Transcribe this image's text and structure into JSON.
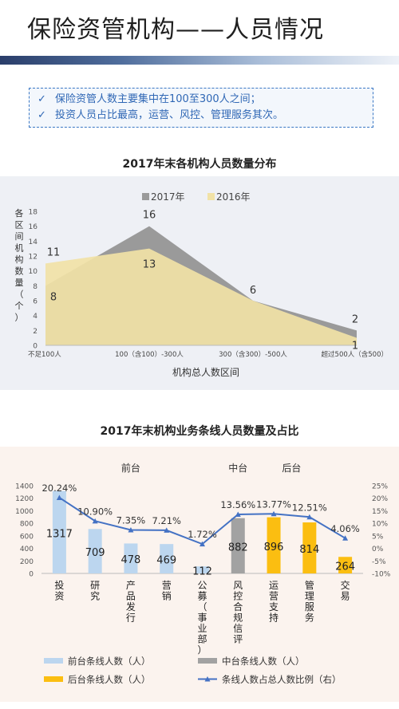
{
  "page": {
    "title": "保险资管机构——人员情况",
    "highlights": [
      "保险资管人数主要集中在100至300人之间；",
      "投资人员占比最高，运营、风控、管理服务其次。"
    ],
    "check_icon": "✓"
  },
  "chart_data": [
    {
      "type": "area",
      "title": "2017年末各机构人员数量分布",
      "xlabel": "机构总人数区间",
      "ylabel": "各区间机构数量（个）",
      "ylim": [
        0,
        18
      ],
      "yticks": [
        0,
        2,
        4,
        6,
        8,
        10,
        12,
        14,
        16,
        18
      ],
      "categories": [
        "不足100人",
        "100（含100）-300人",
        "300（含300）-500人",
        "超过500人（含500）"
      ],
      "series": [
        {
          "name": "2017年",
          "values": [
            8,
            16,
            6,
            2
          ],
          "color": "#9a9a9a"
        },
        {
          "name": "2016年",
          "values": [
            11,
            13,
            6,
            1
          ],
          "color": "#f1e2a6"
        }
      ],
      "legend": "top-center",
      "grid": false
    },
    {
      "type": "bar",
      "title": "2017年末机构业务条线人员数量及占比",
      "groups": [
        {
          "label": "前台",
          "from": 0,
          "to": 4
        },
        {
          "label": "中台",
          "from": 5,
          "to": 5
        },
        {
          "label": "后台",
          "from": 6,
          "to": 7
        }
      ],
      "categories": [
        "投资",
        "研究",
        "产品发行",
        "营销",
        "公募（事业部）",
        "风控合规信评",
        "运营支持",
        "管理服务",
        "交易"
      ],
      "counts": [
        1317,
        709,
        478,
        469,
        112,
        882,
        896,
        814,
        264
      ],
      "bar_series": [
        0,
        0,
        0,
        0,
        0,
        1,
        2,
        2,
        2
      ],
      "ratio_labels": [
        "20.24%",
        "10.90%",
        "7.35%",
        "7.21%",
        "1.72%",
        "13.56%",
        "13.77%",
        "12.51%",
        "4.06%"
      ],
      "ratios": [
        20.24,
        10.9,
        7.35,
        7.21,
        1.72,
        13.56,
        13.77,
        12.51,
        4.06
      ],
      "ylim_left": [
        0,
        1400
      ],
      "yticks_left": [
        0,
        200,
        400,
        600,
        800,
        1000,
        1200,
        1400
      ],
      "ylim_right": [
        -10,
        25
      ],
      "yticks_right": [
        "-10%",
        "-5%",
        "0%",
        "5%",
        "10%",
        "15%",
        "20%",
        "25%"
      ],
      "series": [
        {
          "name": "前台条线人数（人）",
          "color": "#bcd6ef"
        },
        {
          "name": "中台条线人数（人）",
          "color": "#a2a2a2"
        },
        {
          "name": "后台条线人数（人）",
          "color": "#fbbe11"
        },
        {
          "name": "条线人数占总人数比例（右）",
          "color": "#4472c4"
        }
      ],
      "legend": "bottom"
    }
  ]
}
